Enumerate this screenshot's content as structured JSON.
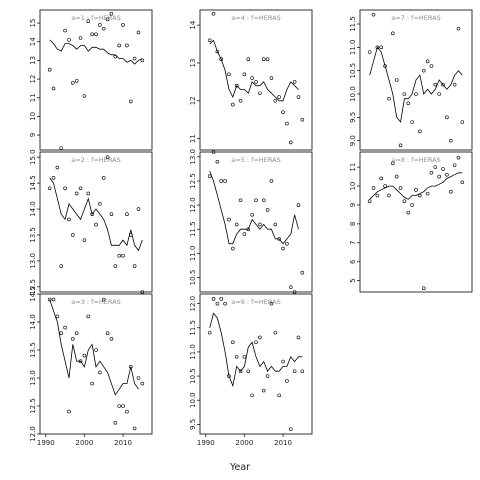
{
  "chart_data": {
    "type": "line",
    "layout": "3x3 panel grid",
    "xlabel": "Year",
    "xticks": [
      1990,
      2000,
      2010
    ],
    "line_color": "#000000",
    "point_color": "#000000",
    "panel_border_color": "#000000",
    "panels": [
      {
        "title": "a=1 : f=HERAS",
        "xlim": [
          1988.5,
          2017.5
        ],
        "ylim": [
          8.2,
          15.7
        ],
        "yticks": [
          9,
          10,
          11,
          12,
          13,
          14,
          15
        ],
        "line": {
          "x": [
            1991,
            1992,
            1993,
            1994,
            1995,
            1996,
            1997,
            1998,
            1999,
            2000,
            2001,
            2002,
            2003,
            2004,
            2005,
            2006,
            2007,
            2008,
            2009,
            2010,
            2011,
            2012,
            2013,
            2014,
            2015
          ],
          "y": [
            14.1,
            13.9,
            13.6,
            13.5,
            13.9,
            13.9,
            13.8,
            13.6,
            13.8,
            13.8,
            13.5,
            13.7,
            13.7,
            13.6,
            13.6,
            13.4,
            13.3,
            13.3,
            13.1,
            13.1,
            12.9,
            13.0,
            12.8,
            13.0,
            13.1
          ]
        },
        "points": {
          "x": [
            1991,
            1992,
            1994,
            1995,
            1996,
            1997,
            1998,
            1999,
            2000,
            2001,
            2002,
            2003,
            2004,
            2005,
            2006,
            2007,
            2008,
            2009,
            2010,
            2011,
            2012,
            2013,
            2014,
            2015
          ],
          "y": [
            12.5,
            11.5,
            8.3,
            14.6,
            14.1,
            11.8,
            11.9,
            14.2,
            11.1,
            15.1,
            14.4,
            14.4,
            14.9,
            14.7,
            15.2,
            15.5,
            13.2,
            13.8,
            14.9,
            13.8,
            10.8,
            13.1,
            14.5,
            13.0
          ]
        }
      },
      {
        "title": "a=4 : f=HERAS",
        "xlim": [
          1988.5,
          2017.5
        ],
        "ylim": [
          10.7,
          14.4
        ],
        "yticks": [
          11.0,
          12.0,
          13.0,
          14.0
        ],
        "line": {
          "x": [
            1991,
            1992,
            1993,
            1994,
            1995,
            1996,
            1997,
            1998,
            1999,
            2000,
            2001,
            2002,
            2003,
            2004,
            2005,
            2006,
            2007,
            2008,
            2009,
            2010,
            2011,
            2012,
            2013,
            2014
          ],
          "y": [
            13.5,
            13.6,
            13.3,
            13.1,
            12.8,
            12.3,
            12.1,
            12.4,
            12.3,
            12.3,
            12.2,
            12.5,
            12.4,
            12.4,
            12.5,
            12.3,
            12.2,
            12.1,
            12.0,
            12.0,
            12.3,
            12.5,
            12.4,
            12.3
          ]
        },
        "points": {
          "x": [
            1991,
            1992,
            1993,
            1994,
            1996,
            1997,
            1998,
            1999,
            2000,
            2001,
            2002,
            2003,
            2004,
            2005,
            2006,
            2007,
            2008,
            2009,
            2010,
            2011,
            2012,
            2013,
            2014,
            2015
          ],
          "y": [
            13.6,
            14.3,
            13.3,
            13.1,
            12.7,
            11.9,
            12.4,
            12.0,
            12.7,
            13.1,
            12.6,
            12.5,
            12.2,
            13.1,
            13.1,
            12.6,
            12.0,
            12.1,
            11.7,
            11.4,
            10.9,
            12.5,
            12.1,
            11.5
          ]
        }
      },
      {
        "title": "a=7 : f=HERAS",
        "xlim": [
          1988.5,
          2017.5
        ],
        "ylim": [
          8.8,
          11.8
        ],
        "yticks": [
          9.0,
          9.5,
          10.0,
          10.5,
          11.0,
          11.5
        ],
        "line": {
          "x": [
            1991,
            1992,
            1993,
            1994,
            1995,
            1996,
            1997,
            1998,
            1999,
            2000,
            2001,
            2002,
            2003,
            2004,
            2005,
            2006,
            2007,
            2008,
            2009,
            2010,
            2011,
            2012,
            2013,
            2014,
            2015
          ],
          "y": [
            10.4,
            10.7,
            11.0,
            10.9,
            10.6,
            10.3,
            10.0,
            9.5,
            9.4,
            9.9,
            9.9,
            10.0,
            10.3,
            10.4,
            10.0,
            10.1,
            10.0,
            10.1,
            10.3,
            10.2,
            10.1,
            10.2,
            10.4,
            10.5,
            10.4
          ]
        },
        "points": {
          "x": [
            1991,
            1992,
            1993,
            1994,
            1995,
            1996,
            1997,
            1998,
            1999,
            2000,
            2001,
            2002,
            2003,
            2004,
            2005,
            2006,
            2007,
            2008,
            2009,
            2010,
            2011,
            2012,
            2013,
            2014,
            2015
          ],
          "y": [
            10.9,
            11.7,
            11.0,
            11.0,
            10.6,
            9.9,
            11.3,
            10.3,
            8.9,
            10.0,
            9.8,
            9.4,
            10.0,
            9.2,
            10.5,
            10.7,
            10.6,
            10.2,
            10.0,
            10.2,
            9.5,
            9.0,
            10.2,
            11.4,
            9.4
          ]
        }
      },
      {
        "title": "a=2 : f=HERAS",
        "xlim": [
          1988.5,
          2017.5
        ],
        "ylim": [
          12.4,
          15.1
        ],
        "yticks": [
          12.5,
          13.0,
          13.5,
          14.0,
          14.5,
          15.0
        ],
        "line": {
          "x": [
            1991,
            1992,
            1993,
            1994,
            1995,
            1996,
            1997,
            1998,
            1999,
            2000,
            2001,
            2002,
            2003,
            2004,
            2005,
            2006,
            2007,
            2008,
            2009,
            2010,
            2011,
            2012,
            2013,
            2014,
            2015
          ],
          "y": [
            14.6,
            14.5,
            14.2,
            13.9,
            13.8,
            14.1,
            14.0,
            13.9,
            13.8,
            14.0,
            14.2,
            13.9,
            14.0,
            13.9,
            13.8,
            13.6,
            13.3,
            13.3,
            13.3,
            13.4,
            13.3,
            13.6,
            13.3,
            13.2,
            13.4
          ]
        },
        "points": {
          "x": [
            1991,
            1992,
            1993,
            1994,
            1995,
            1996,
            1997,
            1998,
            1999,
            2000,
            2001,
            2002,
            2003,
            2004,
            2005,
            2006,
            2007,
            2008,
            2009,
            2010,
            2011,
            2012,
            2013,
            2014,
            2015
          ],
          "y": [
            14.4,
            14.6,
            14.8,
            12.9,
            14.4,
            13.8,
            13.5,
            14.3,
            14.4,
            13.4,
            14.3,
            13.9,
            13.7,
            14.1,
            14.6,
            15.0,
            13.9,
            12.9,
            13.1,
            13.1,
            13.9,
            13.5,
            12.9,
            14.0,
            12.4
          ]
        }
      },
      {
        "title": "a=5 : f=HERAS",
        "xlim": [
          1988.5,
          2017.5
        ],
        "ylim": [
          10.2,
          13.1
        ],
        "yticks": [
          10.5,
          11.0,
          11.5,
          12.0,
          12.5,
          13.0
        ],
        "line": {
          "x": [
            1991,
            1992,
            1993,
            1994,
            1995,
            1996,
            1997,
            1998,
            1999,
            2000,
            2001,
            2002,
            2003,
            2004,
            2005,
            2006,
            2007,
            2008,
            2009,
            2010,
            2011,
            2012,
            2013,
            2014
          ],
          "y": [
            12.7,
            12.5,
            12.2,
            11.9,
            11.6,
            11.2,
            11.2,
            11.4,
            11.5,
            11.5,
            11.5,
            11.7,
            11.6,
            11.5,
            11.6,
            11.5,
            11.5,
            11.3,
            11.3,
            11.2,
            11.3,
            11.4,
            11.8,
            11.5
          ]
        },
        "points": {
          "x": [
            1991,
            1992,
            1993,
            1994,
            1995,
            1996,
            1997,
            1998,
            1999,
            2000,
            2001,
            2002,
            2003,
            2004,
            2005,
            2006,
            2007,
            2008,
            2009,
            2010,
            2011,
            2012,
            2013,
            2014,
            2015
          ],
          "y": [
            12.6,
            13.1,
            12.9,
            12.5,
            12.5,
            11.7,
            11.1,
            11.6,
            12.1,
            11.4,
            11.5,
            11.8,
            12.1,
            11.6,
            12.1,
            11.9,
            12.5,
            11.6,
            11.3,
            11.1,
            11.2,
            10.3,
            10.2,
            12.0,
            10.6
          ]
        }
      },
      {
        "title": "a=8 : f=HERAS",
        "xlim": [
          1988.5,
          2017.5
        ],
        "ylim": [
          4.4,
          11.8
        ],
        "yticks": [
          5,
          6,
          7,
          8,
          9,
          10,
          11
        ],
        "line": {
          "x": [
            1991,
            1992,
            1993,
            1994,
            1995,
            1996,
            1997,
            1998,
            1999,
            2000,
            2001,
            2002,
            2003,
            2004,
            2005,
            2006,
            2007,
            2008,
            2009,
            2010,
            2011,
            2012,
            2013,
            2014,
            2015
          ],
          "y": [
            9.3,
            9.5,
            9.7,
            9.8,
            9.9,
            10.0,
            10.0,
            9.8,
            9.6,
            9.4,
            9.3,
            9.5,
            9.5,
            9.6,
            9.7,
            9.9,
            10.0,
            10.0,
            10.1,
            10.2,
            10.4,
            10.5,
            10.6,
            10.7,
            10.7
          ]
        },
        "points": {
          "x": [
            1991,
            1992,
            1993,
            1994,
            1995,
            1996,
            1997,
            1998,
            1999,
            2000,
            2001,
            2002,
            2003,
            2004,
            2005,
            2006,
            2007,
            2008,
            2009,
            2010,
            2011,
            2012,
            2013,
            2014,
            2015
          ],
          "y": [
            9.2,
            9.9,
            9.5,
            10.4,
            10.0,
            9.5,
            11.2,
            10.5,
            9.9,
            9.2,
            8.6,
            9.0,
            9.8,
            9.5,
            4.6,
            9.6,
            10.7,
            11.0,
            10.5,
            10.9,
            10.6,
            9.7,
            11.1,
            11.5,
            10.2
          ]
        }
      },
      {
        "title": "a=3 : f=HERAS",
        "xlim": [
          1988.5,
          2017.5
        ],
        "ylim": [
          12.0,
          14.5
        ],
        "yticks": [
          12.0,
          12.5,
          13.0,
          13.5,
          14.0,
          14.5
        ],
        "line": {
          "x": [
            1991,
            1992,
            1993,
            1994,
            1995,
            1996,
            1997,
            1998,
            1999,
            2000,
            2001,
            2002,
            2003,
            2004,
            2005,
            2006,
            2007,
            2008,
            2009,
            2010,
            2011,
            2012,
            2013,
            2014
          ],
          "y": [
            14.4,
            14.2,
            14.0,
            13.6,
            13.3,
            13.0,
            13.6,
            13.3,
            13.3,
            13.2,
            13.5,
            13.6,
            13.2,
            13.3,
            13.2,
            13.1,
            12.9,
            12.7,
            12.8,
            12.9,
            12.9,
            13.2,
            12.9,
            12.8
          ]
        },
        "points": {
          "x": [
            1991,
            1992,
            1993,
            1994,
            1995,
            1996,
            1997,
            1998,
            1999,
            2000,
            2001,
            2002,
            2003,
            2004,
            2005,
            2006,
            2007,
            2008,
            2009,
            2010,
            2011,
            2012,
            2013,
            2014,
            2015
          ],
          "y": [
            14.4,
            14.4,
            14.1,
            13.8,
            13.9,
            12.4,
            13.7,
            13.8,
            13.3,
            13.4,
            14.1,
            12.9,
            13.5,
            13.1,
            14.4,
            13.8,
            13.7,
            12.2,
            12.5,
            12.5,
            12.4,
            13.2,
            12.1,
            13.0,
            12.9
          ]
        }
      },
      {
        "title": "a=6 : f=HERAS",
        "xlim": [
          1988.5,
          2017.5
        ],
        "ylim": [
          9.3,
          12.2
        ],
        "yticks": [
          9.5,
          10.0,
          10.5,
          11.0,
          11.5,
          12.0
        ],
        "line": {
          "x": [
            1991,
            1992,
            1993,
            1994,
            1995,
            1996,
            1997,
            1998,
            1999,
            2000,
            2001,
            2002,
            2003,
            2004,
            2005,
            2006,
            2007,
            2008,
            2009,
            2010,
            2011,
            2012,
            2013,
            2014,
            2015
          ],
          "y": [
            11.5,
            11.8,
            11.7,
            11.4,
            11.0,
            10.5,
            10.3,
            10.7,
            10.6,
            10.7,
            11.1,
            11.2,
            10.9,
            10.7,
            10.8,
            10.6,
            10.7,
            10.6,
            10.6,
            10.7,
            10.7,
            10.9,
            10.8,
            10.9,
            10.9
          ]
        },
        "points": {
          "x": [
            1991,
            1992,
            1993,
            1994,
            1995,
            1996,
            1997,
            1998,
            1999,
            2000,
            2001,
            2002,
            2003,
            2004,
            2005,
            2006,
            2007,
            2008,
            2009,
            2010,
            2011,
            2012,
            2013,
            2014,
            2015
          ],
          "y": [
            11.4,
            12.1,
            12.0,
            12.1,
            12.0,
            10.5,
            11.2,
            10.9,
            10.6,
            10.9,
            10.6,
            10.1,
            11.2,
            11.3,
            10.2,
            10.5,
            12.0,
            11.4,
            10.1,
            10.8,
            10.4,
            9.4,
            10.6,
            11.3,
            10.6
          ]
        }
      }
    ]
  }
}
